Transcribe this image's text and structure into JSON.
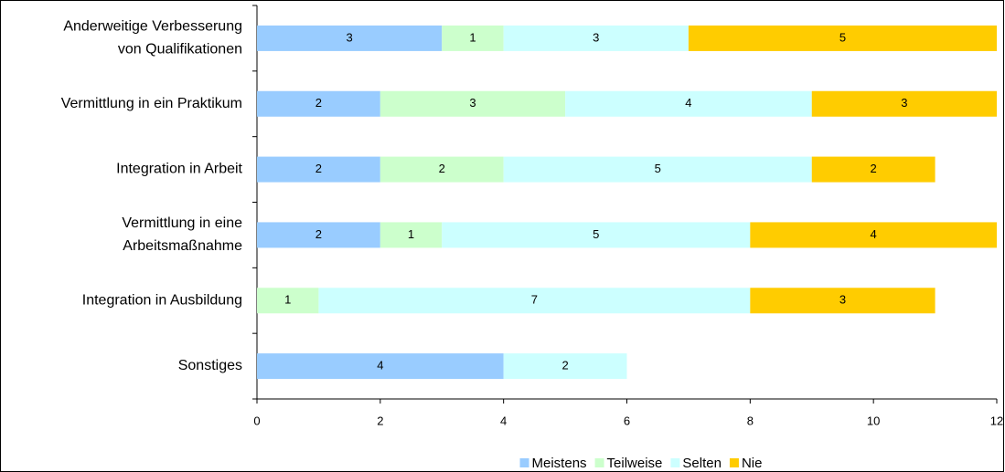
{
  "chart_data": {
    "type": "stacked-bar-horizontal",
    "categories": [
      "Anderweitige Verbesserung\nvon Qualifikationen",
      "Vermittlung in ein Praktikum",
      "Integration in Arbeit",
      "Vermittlung in eine\nArbeitsmaßnahme",
      "Integration in Ausbildung",
      "Sonstiges"
    ],
    "series": [
      {
        "name": "Meistens",
        "color": "#99ccff",
        "values": [
          3,
          2,
          2,
          2,
          null,
          4
        ]
      },
      {
        "name": "Teilweise",
        "color": "#ccffcc",
        "values": [
          1,
          3,
          2,
          1,
          1,
          null
        ]
      },
      {
        "name": "Selten",
        "color": "#ccffff",
        "values": [
          3,
          4,
          5,
          5,
          7,
          2
        ]
      },
      {
        "name": "Nie",
        "color": "#ffcc00",
        "values": [
          5,
          3,
          2,
          4,
          3,
          null
        ]
      }
    ],
    "xlim": [
      0,
      12
    ],
    "xticks": [
      0,
      2,
      4,
      6,
      8,
      10,
      12
    ],
    "grid": false,
    "legend": "bottom"
  }
}
